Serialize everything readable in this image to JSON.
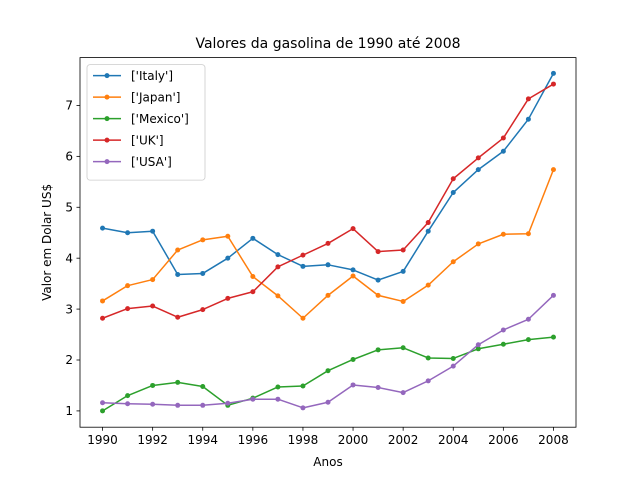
{
  "chart_data": {
    "type": "line",
    "title": "Valores da gasolina de 1990 até 2008",
    "xlabel": "Anos",
    "ylabel": "Valor em Dolar US$",
    "x": [
      1990,
      1991,
      1992,
      1993,
      1994,
      1995,
      1996,
      1997,
      1998,
      1999,
      2000,
      2001,
      2002,
      2003,
      2004,
      2005,
      2006,
      2007,
      2008
    ],
    "xlim": [
      1989.1,
      2008.9
    ],
    "ylim": [
      0.68,
      7.94
    ],
    "xticks": [
      1990,
      1992,
      1994,
      1996,
      1998,
      2000,
      2002,
      2004,
      2006,
      2008
    ],
    "yticks": [
      1,
      2,
      3,
      4,
      5,
      6,
      7
    ],
    "grid": false,
    "legend_position": "upper-left",
    "series": [
      {
        "name": "['Italy']",
        "color": "#1f77b4",
        "values": [
          4.59,
          4.5,
          4.53,
          3.68,
          3.7,
          4.0,
          4.39,
          4.07,
          3.84,
          3.87,
          3.77,
          3.57,
          3.74,
          4.53,
          5.29,
          5.74,
          6.1,
          6.73,
          7.63
        ]
      },
      {
        "name": "['Japan']",
        "color": "#ff7f0e",
        "values": [
          3.16,
          3.46,
          3.58,
          4.16,
          4.36,
          4.43,
          3.64,
          3.26,
          2.82,
          3.27,
          3.65,
          3.27,
          3.15,
          3.47,
          3.93,
          4.28,
          4.47,
          4.48,
          5.74
        ]
      },
      {
        "name": "['Mexico']",
        "color": "#2ca02c",
        "values": [
          1.0,
          1.3,
          1.5,
          1.56,
          1.48,
          1.11,
          1.25,
          1.47,
          1.49,
          1.79,
          2.01,
          2.2,
          2.24,
          2.04,
          2.03,
          2.22,
          2.31,
          2.4,
          2.45
        ]
      },
      {
        "name": "['UK']",
        "color": "#d62728",
        "values": [
          2.82,
          3.01,
          3.06,
          2.84,
          2.99,
          3.21,
          3.34,
          3.83,
          4.06,
          4.29,
          4.58,
          4.13,
          4.16,
          4.7,
          5.56,
          5.97,
          6.36,
          7.13,
          7.42
        ]
      },
      {
        "name": "['USA']",
        "color": "#9467bd",
        "values": [
          1.16,
          1.14,
          1.13,
          1.11,
          1.11,
          1.15,
          1.23,
          1.23,
          1.06,
          1.17,
          1.51,
          1.46,
          1.36,
          1.59,
          1.88,
          2.3,
          2.59,
          2.8,
          3.27
        ]
      }
    ]
  }
}
